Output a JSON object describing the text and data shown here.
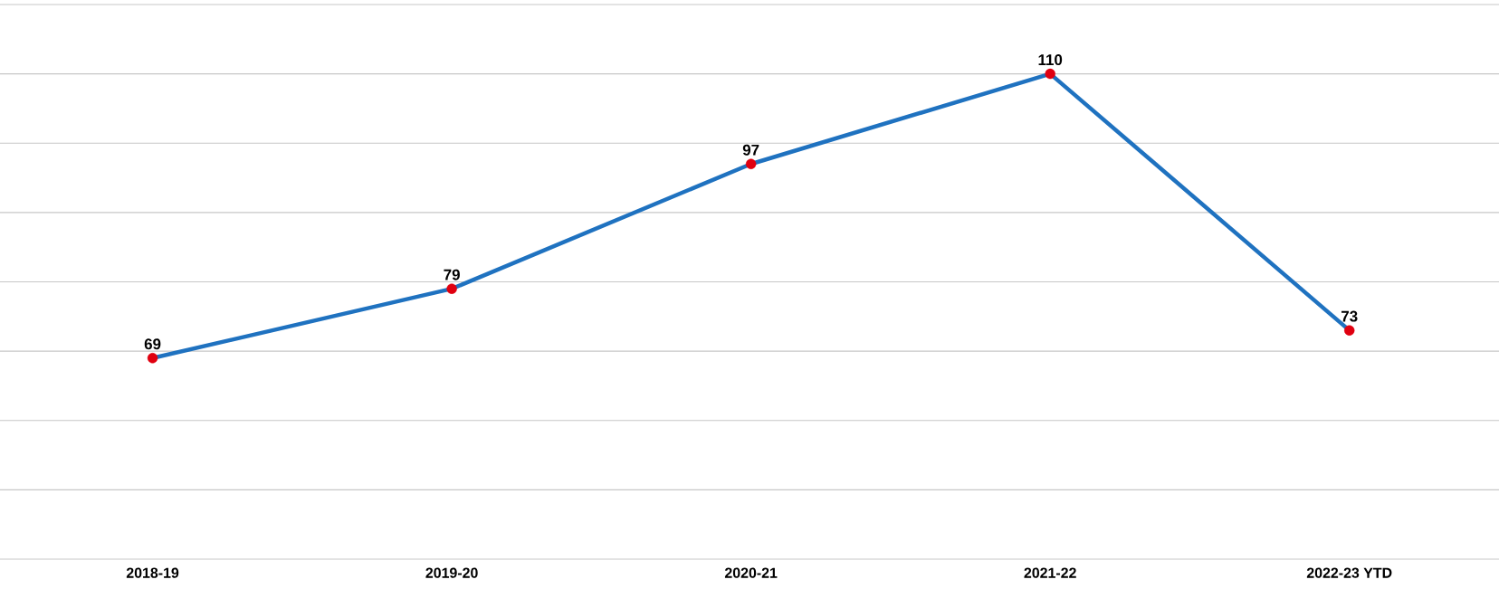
{
  "chart_data": {
    "type": "line",
    "categories": [
      "2018-19",
      "2019-20",
      "2020-21",
      "2021-22",
      "2022-23 YTD"
    ],
    "series": [
      {
        "color": "#1f72c0",
        "colors": [
          "#e00010",
          "#e00010",
          "#e00010",
          "#e00010",
          "#e00010"
        ],
        "values": [
          69,
          79,
          97,
          110,
          73
        ]
      }
    ],
    "ylim": [
      40,
      120
    ],
    "yticks": [
      40,
      50,
      60,
      70,
      80,
      90,
      100,
      110,
      120
    ],
    "tick_labels": "x",
    "grid": "y",
    "data_labels": true,
    "marker": "circle"
  }
}
